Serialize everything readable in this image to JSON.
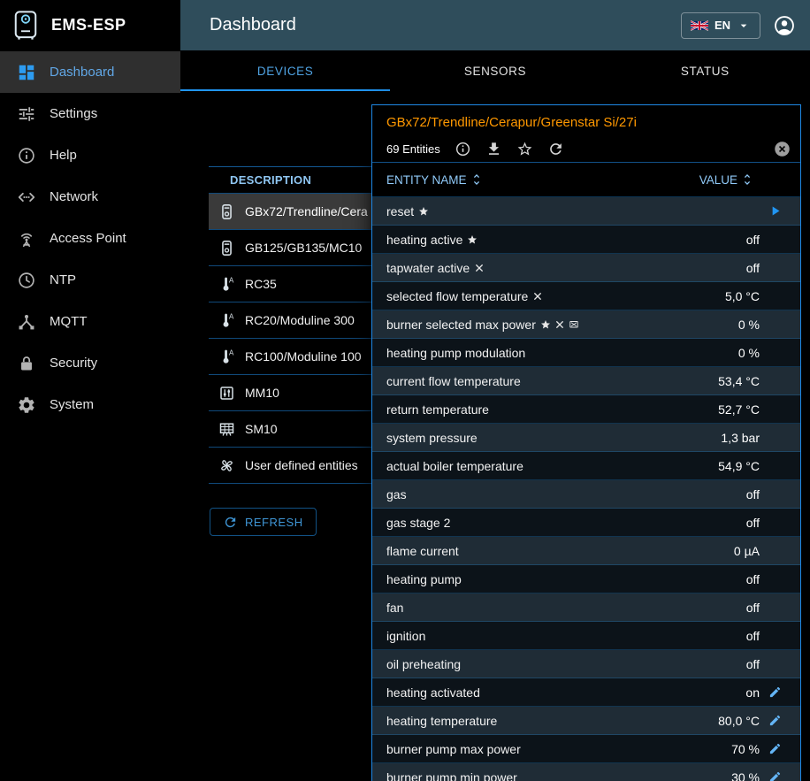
{
  "app": {
    "name": "EMS-ESP",
    "page_title": "Dashboard"
  },
  "topbar": {
    "language_code": "EN"
  },
  "colors": {
    "accent_blue": "#2196f3",
    "header_bar": "#2f4d5b",
    "device_title_orange": "#ff9800",
    "column_header_blue": "#90caf9"
  },
  "sidebar": {
    "items": [
      {
        "label": "Dashboard",
        "icon": "dashboard",
        "active": true
      },
      {
        "label": "Settings",
        "icon": "tune",
        "active": false
      },
      {
        "label": "Help",
        "icon": "info",
        "active": false
      },
      {
        "label": "Network",
        "icon": "ethernet",
        "active": false
      },
      {
        "label": "Access Point",
        "icon": "antenna",
        "active": false
      },
      {
        "label": "NTP",
        "icon": "clock",
        "active": false
      },
      {
        "label": "MQTT",
        "icon": "hub",
        "active": false
      },
      {
        "label": "Security",
        "icon": "lock",
        "active": false
      },
      {
        "label": "System",
        "icon": "gear",
        "active": false
      }
    ]
  },
  "tabs": [
    {
      "label": "DEVICES",
      "active": true
    },
    {
      "label": "SENSORS",
      "active": false
    },
    {
      "label": "STATUS",
      "active": false
    }
  ],
  "devices": {
    "header": "DESCRIPTION",
    "refresh_label": "REFRESH",
    "rows": [
      {
        "label": "GBx72/Trendline/Cera",
        "icon": "boiler",
        "selected": true
      },
      {
        "label": "GB125/GB135/MC10",
        "icon": "boiler",
        "selected": false
      },
      {
        "label": "RC35",
        "icon": "thermostat",
        "selected": false
      },
      {
        "label": "RC20/Moduline 300",
        "icon": "thermostat",
        "selected": false
      },
      {
        "label": "RC100/Moduline 100",
        "icon": "thermostat",
        "selected": false
      },
      {
        "label": "MM10",
        "icon": "module",
        "selected": false
      },
      {
        "label": "SM10",
        "icon": "solar",
        "selected": false
      },
      {
        "label": "User defined entities",
        "icon": "custom",
        "selected": false
      }
    ]
  },
  "panel": {
    "title": "GBx72/Trendline/Cerapur/Greenstar Si/27i",
    "entities_count": "69 Entities",
    "columns": {
      "name": "ENTITY NAME",
      "value": "VALUE"
    },
    "entities": [
      {
        "name": "reset",
        "markers": [
          "star"
        ],
        "value": "",
        "action": "execute"
      },
      {
        "name": "heating active",
        "markers": [
          "star"
        ],
        "value": "off"
      },
      {
        "name": "tapwater active",
        "markers": [
          "cross"
        ],
        "value": "off"
      },
      {
        "name": "selected flow temperature",
        "markers": [
          "cross"
        ],
        "value": "5,0 °C"
      },
      {
        "name": "burner selected max power",
        "markers": [
          "star",
          "cross",
          "boxed-cross"
        ],
        "value": "0 %"
      },
      {
        "name": "heating pump modulation",
        "markers": [],
        "value": "0 %"
      },
      {
        "name": "current flow temperature",
        "markers": [],
        "value": "53,4 °C"
      },
      {
        "name": "return temperature",
        "markers": [],
        "value": "52,7 °C"
      },
      {
        "name": "system pressure",
        "markers": [],
        "value": "1,3 bar"
      },
      {
        "name": "actual boiler temperature",
        "markers": [],
        "value": "54,9 °C"
      },
      {
        "name": "gas",
        "markers": [],
        "value": "off"
      },
      {
        "name": "gas stage 2",
        "markers": [],
        "value": "off"
      },
      {
        "name": "flame current",
        "markers": [],
        "value": "0 µA"
      },
      {
        "name": "heating pump",
        "markers": [],
        "value": "off"
      },
      {
        "name": "fan",
        "markers": [],
        "value": "off"
      },
      {
        "name": "ignition",
        "markers": [],
        "value": "off"
      },
      {
        "name": "oil preheating",
        "markers": [],
        "value": "off"
      },
      {
        "name": "heating activated",
        "markers": [],
        "value": "on",
        "editable": true
      },
      {
        "name": "heating temperature",
        "markers": [],
        "value": "80,0 °C",
        "editable": true
      },
      {
        "name": "burner pump max power",
        "markers": [],
        "value": "70 %",
        "editable": true
      },
      {
        "name": "burner pump min power",
        "markers": [],
        "value": "30 %",
        "editable": true
      }
    ]
  }
}
